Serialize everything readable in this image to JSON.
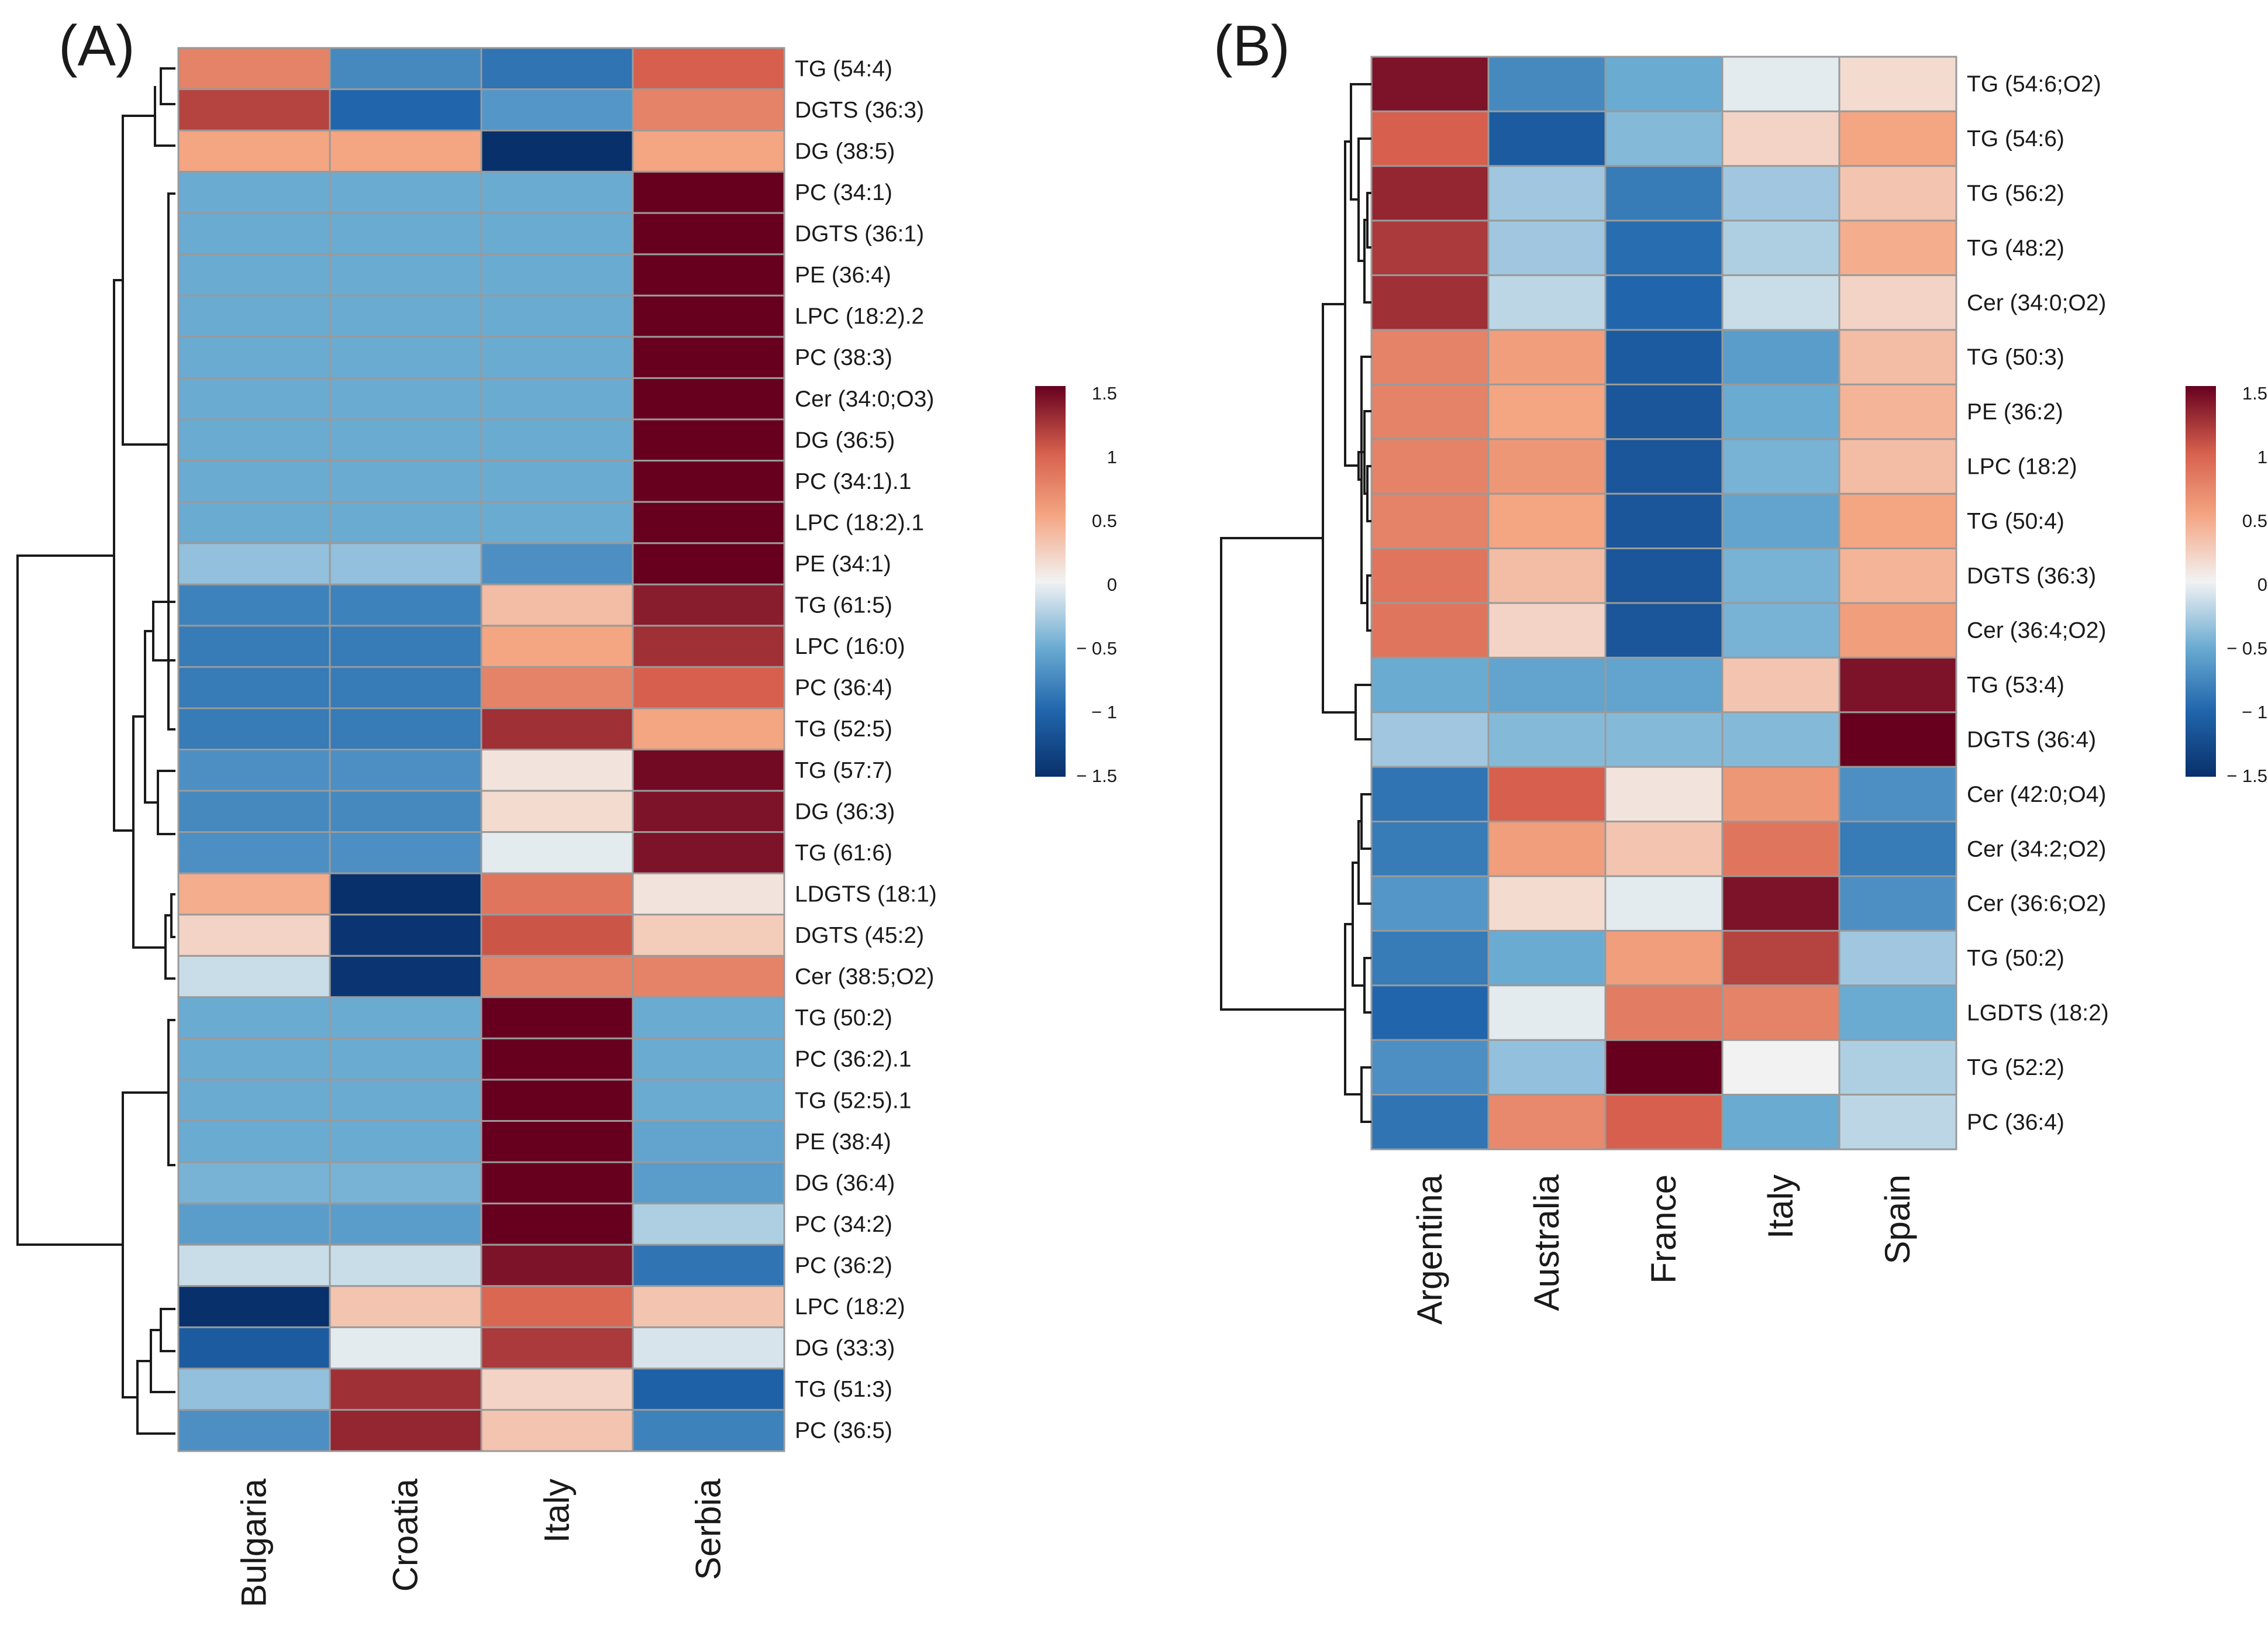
{
  "colors": {
    "low": "#08306b",
    "mid_low": "#4a90c8",
    "neutral": "#f2f2f2",
    "mid_high": "#e8735a",
    "high": "#67001f",
    "cell_border": "#9a9a9a",
    "dendrogram": "#1a1a1a"
  },
  "chart_data": [
    {
      "type": "heatmap",
      "panel_label": "(A)",
      "columns": [
        "Bulgaria",
        "Croatia",
        "Italy",
        "Serbia"
      ],
      "rows": [
        "TG (54:4)",
        "DGTS (36:3)",
        "DG (38:5)",
        "PC (34:1)",
        "DGTS (36:1)",
        "PE (36:4)",
        "LPC (18:2).2",
        "PC (38:3)",
        "Cer (34:0;O3)",
        "DG (36:5)",
        "PC (34:1).1",
        "LPC (18:2).1",
        "PE (34:1)",
        "TG (61:5)",
        "LPC (16:0)",
        "PC (36:4)",
        "TG (52:5)",
        "TG (57:7)",
        "DG (36:3)",
        "TG (61:6)",
        "LDGTS (18:1)",
        "DGTS (45:2)",
        "Cer (38:5;O2)",
        "TG (50:2)",
        "PC (36:2).1",
        "TG (52:5).1",
        "PE (38:4)",
        "DG (36:4)",
        "PC (34:2)",
        "PC (36:2)",
        "LPC (18:2)",
        "DG (33:3)",
        "TG (51:3)",
        "PC (36:5)"
      ],
      "values": [
        [
          0.75,
          -0.75,
          -0.9,
          1.0
        ],
        [
          1.15,
          -1.0,
          -0.65,
          0.75
        ],
        [
          0.5,
          0.5,
          -1.5,
          0.5
        ],
        [
          -0.5,
          -0.5,
          -0.5,
          1.5
        ],
        [
          -0.5,
          -0.5,
          -0.5,
          1.5
        ],
        [
          -0.5,
          -0.5,
          -0.5,
          1.5
        ],
        [
          -0.5,
          -0.5,
          -0.5,
          1.5
        ],
        [
          -0.5,
          -0.5,
          -0.5,
          1.5
        ],
        [
          -0.5,
          -0.5,
          -0.5,
          1.5
        ],
        [
          -0.5,
          -0.5,
          -0.5,
          1.5
        ],
        [
          -0.5,
          -0.5,
          -0.5,
          1.5
        ],
        [
          -0.5,
          -0.5,
          -0.5,
          1.5
        ],
        [
          -0.35,
          -0.35,
          -0.7,
          1.5
        ],
        [
          -0.8,
          -0.8,
          0.35,
          1.35
        ],
        [
          -0.85,
          -0.85,
          0.5,
          1.25
        ],
        [
          -0.85,
          -0.85,
          0.75,
          1.0
        ],
        [
          -0.85,
          -0.85,
          1.25,
          0.5
        ],
        [
          -0.7,
          -0.7,
          0.1,
          1.45
        ],
        [
          -0.75,
          -0.75,
          0.15,
          1.4
        ],
        [
          -0.7,
          -0.7,
          -0.05,
          1.4
        ],
        [
          0.45,
          -1.5,
          0.85,
          0.1
        ],
        [
          0.2,
          -1.45,
          1.05,
          0.25
        ],
        [
          -0.15,
          -1.45,
          0.75,
          0.75
        ],
        [
          -0.5,
          -0.5,
          1.5,
          -0.5
        ],
        [
          -0.5,
          -0.5,
          1.5,
          -0.5
        ],
        [
          -0.5,
          -0.5,
          1.5,
          -0.5
        ],
        [
          -0.5,
          -0.5,
          1.5,
          -0.55
        ],
        [
          -0.45,
          -0.45,
          1.5,
          -0.6
        ],
        [
          -0.6,
          -0.6,
          1.5,
          -0.25
        ],
        [
          -0.15,
          -0.15,
          1.4,
          -0.9
        ],
        [
          -1.5,
          0.3,
          0.95,
          0.3
        ],
        [
          -1.1,
          -0.05,
          1.2,
          -0.1
        ],
        [
          -0.35,
          1.25,
          0.2,
          -1.05
        ],
        [
          -0.7,
          1.3,
          0.3,
          -0.8
        ]
      ],
      "color_scale": {
        "min": -1.5,
        "max": 1.5,
        "ticks": [
          "1.5",
          "1",
          "0.5",
          "0",
          "− 0.5",
          "− 1",
          "− 1.5"
        ]
      }
    },
    {
      "type": "heatmap",
      "panel_label": "(B)",
      "columns": [
        "Argentina",
        "Australia",
        "France",
        "Italy",
        "Spain"
      ],
      "rows": [
        "TG (54:6;O2)",
        "TG (54:6)",
        "TG (56:2)",
        "TG (48:2)",
        "Cer (34:0;O2)",
        "TG (50:3)",
        "PE (36:2)",
        "LPC (18:2)",
        "TG (50:4)",
        "DGTS (36:3)",
        "Cer (36:4;O2)",
        "TG (53:4)",
        "DGTS (36:4)",
        "Cer (42:0;O4)",
        "Cer (34:2;O2)",
        "Cer (36:6;O2)",
        "TG (50:2)",
        "LGDTS (18:2)",
        "TG (52:2)",
        "PC (36:4)"
      ],
      "values": [
        [
          1.4,
          -0.75,
          -0.5,
          -0.05,
          0.15
        ],
        [
          1.0,
          -1.1,
          -0.4,
          0.2,
          0.5
        ],
        [
          1.3,
          -0.3,
          -0.85,
          -0.3,
          0.3
        ],
        [
          1.2,
          -0.3,
          -0.95,
          -0.25,
          0.45
        ],
        [
          1.25,
          -0.2,
          -1.0,
          -0.15,
          0.2
        ],
        [
          0.75,
          0.55,
          -1.1,
          -0.6,
          0.35
        ],
        [
          0.75,
          0.5,
          -1.15,
          -0.5,
          0.4
        ],
        [
          0.75,
          0.6,
          -1.15,
          -0.45,
          0.35
        ],
        [
          0.75,
          0.5,
          -1.15,
          -0.55,
          0.5
        ],
        [
          0.85,
          0.35,
          -1.15,
          -0.45,
          0.4
        ],
        [
          0.85,
          0.2,
          -1.15,
          -0.45,
          0.55
        ],
        [
          -0.5,
          -0.55,
          -0.55,
          0.3,
          1.4
        ],
        [
          -0.3,
          -0.4,
          -0.4,
          -0.4,
          1.5
        ],
        [
          -0.9,
          1.0,
          0.1,
          0.6,
          -0.7
        ],
        [
          -0.85,
          0.55,
          0.3,
          0.85,
          -0.85
        ],
        [
          -0.65,
          0.15,
          -0.05,
          1.4,
          -0.7
        ],
        [
          -0.85,
          -0.5,
          0.55,
          1.15,
          -0.3
        ],
        [
          -1.0,
          -0.05,
          0.8,
          0.75,
          -0.5
        ],
        [
          -0.7,
          -0.35,
          1.5,
          0.0,
          -0.25
        ],
        [
          -0.9,
          0.7,
          1.0,
          -0.5,
          -0.2
        ]
      ],
      "color_scale": {
        "min": -1.5,
        "max": 1.5,
        "ticks": [
          "1.5",
          "1",
          "0.5",
          "0",
          "− 0.5",
          "− 1",
          "− 1.5"
        ]
      }
    }
  ]
}
